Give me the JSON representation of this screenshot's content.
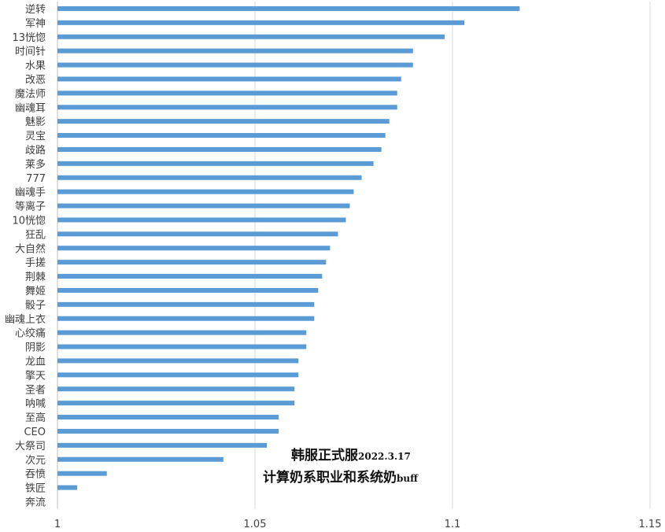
{
  "chart_data": {
    "type": "bar",
    "orientation": "horizontal",
    "title_line1": "韩服正式服",
    "title_line1_suffix": "2022.3.17",
    "title_line2": "计算奶系职业和系统奶",
    "title_line2_suffix": "buff",
    "categories": [
      "逆转",
      "军神",
      "13恍惚",
      "时间针",
      "水果",
      "改恶",
      "魔法师",
      "幽魂耳",
      "魅影",
      "灵宝",
      "歧路",
      "莱多",
      "777",
      "幽魂手",
      "等离子",
      "10恍惚",
      "狂乱",
      "大自然",
      "手搓",
      "荆棘",
      "舞姬",
      "骰子",
      "幽魂上衣",
      "心绞痛",
      "阴影",
      "龙血",
      "擎天",
      "圣者",
      "呐喊",
      "至高",
      "CEO",
      "大祭司",
      "次元",
      "吞愤",
      "铁匠",
      "奔流"
    ],
    "values": [
      1.117,
      1.103,
      1.098,
      1.09,
      1.09,
      1.087,
      1.086,
      1.086,
      1.084,
      1.083,
      1.082,
      1.08,
      1.077,
      1.075,
      1.074,
      1.073,
      1.071,
      1.069,
      1.068,
      1.067,
      1.066,
      1.065,
      1.065,
      1.063,
      1.063,
      1.061,
      1.061,
      1.06,
      1.06,
      1.056,
      1.056,
      1.053,
      1.042,
      1.0125,
      1.005,
      1.0
    ],
    "xlim": [
      1,
      1.15
    ],
    "xticks": [
      "1",
      "1.05",
      "1.1",
      "1.15"
    ],
    "grid": true,
    "bar_color": "#5b9bd5"
  }
}
